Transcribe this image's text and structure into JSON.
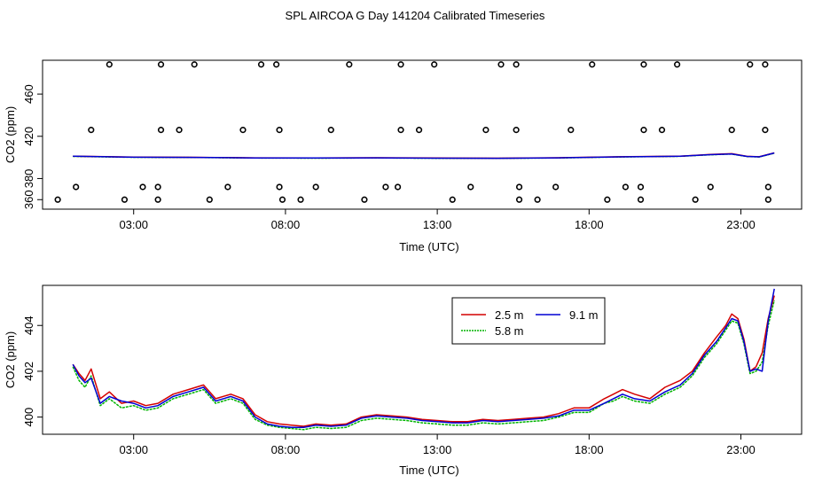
{
  "title": "SPL AIRCOA G  Day 141204  Calibrated Timeseries",
  "chart_data": [
    {
      "type": "line",
      "panel": "top",
      "title": "",
      "xlabel": "Time (UTC)",
      "ylabel": "CO2 (ppm)",
      "xlim": [
        0,
        25
      ],
      "ylim": [
        351,
        492
      ],
      "xtick_values": [
        3,
        8,
        13,
        18,
        23
      ],
      "xtick_labels": [
        "03:00",
        "08:00",
        "13:00",
        "18:00",
        "23:00"
      ],
      "ytick_values": [
        360,
        380,
        420,
        460
      ],
      "ytick_labels": [
        "360",
        "380",
        "420",
        "460"
      ],
      "series": [
        {
          "name": "2.5 m",
          "color": "#d40000",
          "x": [
            1,
            3,
            5,
            7,
            9,
            11,
            13,
            15,
            17,
            19,
            21,
            22,
            22.7,
            23.2,
            23.6,
            24.1
          ],
          "values": [
            401.2,
            400.3,
            400.1,
            399.6,
            399.5,
            399.7,
            399.4,
            399.3,
            399.7,
            400.6,
            401.2,
            402.8,
            403.5,
            401.0,
            400.6,
            404.3
          ]
        },
        {
          "name": "5.8 m",
          "color": "#00b400",
          "x": [
            1,
            3,
            5,
            7,
            9,
            11,
            13,
            15,
            17,
            19,
            21,
            22,
            22.7,
            23.2,
            23.6,
            24.1
          ],
          "values": [
            400.9,
            400.1,
            399.9,
            399.4,
            399.3,
            399.5,
            399.2,
            399.1,
            399.5,
            400.4,
            401.0,
            402.5,
            403.2,
            400.8,
            400.4,
            404.0
          ]
        },
        {
          "name": "9.1 m",
          "color": "#0000d4",
          "x": [
            1,
            3,
            5,
            7,
            9,
            11,
            13,
            15,
            17,
            19,
            21,
            22,
            22.7,
            23.2,
            23.6,
            24.1
          ],
          "values": [
            401.1,
            400.2,
            400.0,
            399.5,
            399.4,
            399.6,
            399.3,
            399.2,
            399.6,
            400.5,
            401.1,
            402.6,
            403.3,
            400.9,
            400.5,
            404.2
          ]
        }
      ],
      "markers": {
        "style": "open circles",
        "points": [
          {
            "x": 2.2,
            "y": 488
          },
          {
            "x": 3.9,
            "y": 488
          },
          {
            "x": 5.0,
            "y": 488
          },
          {
            "x": 7.2,
            "y": 488
          },
          {
            "x": 7.7,
            "y": 488
          },
          {
            "x": 10.1,
            "y": 488
          },
          {
            "x": 11.8,
            "y": 488
          },
          {
            "x": 12.9,
            "y": 488
          },
          {
            "x": 15.1,
            "y": 488
          },
          {
            "x": 15.6,
            "y": 488
          },
          {
            "x": 18.1,
            "y": 488
          },
          {
            "x": 19.8,
            "y": 488
          },
          {
            "x": 20.9,
            "y": 488
          },
          {
            "x": 23.3,
            "y": 488
          },
          {
            "x": 23.8,
            "y": 488
          },
          {
            "x": 1.6,
            "y": 426
          },
          {
            "x": 3.9,
            "y": 426
          },
          {
            "x": 4.5,
            "y": 426
          },
          {
            "x": 6.6,
            "y": 426
          },
          {
            "x": 7.8,
            "y": 426
          },
          {
            "x": 9.5,
            "y": 426
          },
          {
            "x": 11.8,
            "y": 426
          },
          {
            "x": 12.4,
            "y": 426
          },
          {
            "x": 14.6,
            "y": 426
          },
          {
            "x": 15.6,
            "y": 426
          },
          {
            "x": 17.4,
            "y": 426
          },
          {
            "x": 19.8,
            "y": 426
          },
          {
            "x": 20.4,
            "y": 426
          },
          {
            "x": 22.7,
            "y": 426
          },
          {
            "x": 23.8,
            "y": 426
          },
          {
            "x": 1.1,
            "y": 372
          },
          {
            "x": 3.3,
            "y": 372
          },
          {
            "x": 3.8,
            "y": 372
          },
          {
            "x": 6.1,
            "y": 372
          },
          {
            "x": 7.8,
            "y": 372
          },
          {
            "x": 9.0,
            "y": 372
          },
          {
            "x": 11.3,
            "y": 372
          },
          {
            "x": 11.7,
            "y": 372
          },
          {
            "x": 14.1,
            "y": 372
          },
          {
            "x": 15.7,
            "y": 372
          },
          {
            "x": 16.9,
            "y": 372
          },
          {
            "x": 19.2,
            "y": 372
          },
          {
            "x": 19.7,
            "y": 372
          },
          {
            "x": 22.0,
            "y": 372
          },
          {
            "x": 23.9,
            "y": 372
          },
          {
            "x": 0.5,
            "y": 360
          },
          {
            "x": 2.7,
            "y": 360
          },
          {
            "x": 3.8,
            "y": 360
          },
          {
            "x": 5.5,
            "y": 360
          },
          {
            "x": 7.9,
            "y": 360
          },
          {
            "x": 8.5,
            "y": 360
          },
          {
            "x": 10.6,
            "y": 360
          },
          {
            "x": 13.5,
            "y": 360
          },
          {
            "x": 15.7,
            "y": 360
          },
          {
            "x": 16.3,
            "y": 360
          },
          {
            "x": 18.6,
            "y": 360
          },
          {
            "x": 19.7,
            "y": 360
          },
          {
            "x": 21.5,
            "y": 360
          },
          {
            "x": 23.9,
            "y": 360
          }
        ]
      }
    },
    {
      "type": "line",
      "panel": "bottom",
      "title": "",
      "xlabel": "Time (UTC)",
      "ylabel": "CO2 (ppm)",
      "xlim": [
        0,
        25
      ],
      "ylim": [
        399.25,
        405.75
      ],
      "xtick_values": [
        3,
        8,
        13,
        18,
        23
      ],
      "xtick_labels": [
        "03:00",
        "08:00",
        "13:00",
        "18:00",
        "23:00"
      ],
      "ytick_values": [
        400,
        402,
        404
      ],
      "ytick_labels": [
        "400",
        "402",
        "404"
      ],
      "legend": {
        "position": "top-right",
        "labels": [
          "2.5 m",
          "9.1 m",
          "5.8 m"
        ]
      },
      "series": [
        {
          "name": "2.5 m",
          "color": "#d40000",
          "x": [
            1.0,
            1.2,
            1.4,
            1.6,
            1.9,
            2.2,
            2.6,
            3.0,
            3.4,
            3.8,
            4.3,
            4.8,
            5.3,
            5.7,
            6.2,
            6.6,
            7.0,
            7.4,
            7.8,
            8.2,
            8.6,
            9.0,
            9.5,
            10.0,
            10.5,
            11.0,
            11.5,
            12.0,
            12.5,
            13.0,
            13.5,
            14.0,
            14.5,
            15.0,
            15.5,
            16.0,
            16.5,
            17.0,
            17.5,
            18.0,
            18.5,
            18.8,
            19.1,
            19.5,
            20.0,
            20.5,
            21.0,
            21.4,
            21.8,
            22.2,
            22.5,
            22.7,
            22.9,
            23.1,
            23.3,
            23.5,
            23.7,
            23.9,
            24.1
          ],
          "values": [
            402.3,
            401.9,
            401.6,
            402.1,
            400.8,
            401.1,
            400.6,
            400.7,
            400.5,
            400.6,
            401.0,
            401.2,
            401.4,
            400.8,
            401.0,
            400.8,
            400.1,
            399.8,
            399.7,
            399.65,
            399.6,
            399.7,
            399.65,
            399.7,
            400.0,
            400.1,
            400.05,
            400.0,
            399.9,
            399.85,
            399.8,
            399.8,
            399.9,
            399.85,
            399.9,
            399.95,
            400.0,
            400.15,
            400.4,
            400.4,
            400.8,
            401.0,
            401.2,
            401.0,
            400.8,
            401.3,
            401.6,
            402.0,
            402.8,
            403.5,
            404.0,
            404.5,
            404.3,
            403.4,
            402.0,
            402.2,
            402.8,
            404.3,
            405.3
          ]
        },
        {
          "name": "5.8 m",
          "color": "#00b400",
          "x": [
            1.0,
            1.2,
            1.4,
            1.6,
            1.9,
            2.2,
            2.6,
            3.0,
            3.4,
            3.8,
            4.3,
            4.8,
            5.3,
            5.7,
            6.2,
            6.6,
            7.0,
            7.4,
            7.8,
            8.2,
            8.6,
            9.0,
            9.5,
            10.0,
            10.5,
            11.0,
            11.5,
            12.0,
            12.5,
            13.0,
            13.5,
            14.0,
            14.5,
            15.0,
            15.5,
            16.0,
            16.5,
            17.0,
            17.5,
            18.0,
            18.5,
            18.8,
            19.1,
            19.5,
            20.0,
            20.5,
            21.0,
            21.4,
            21.8,
            22.2,
            22.5,
            22.7,
            22.9,
            23.1,
            23.3,
            23.5,
            23.7,
            23.9,
            24.1
          ],
          "values": [
            402.2,
            401.6,
            401.3,
            401.8,
            400.5,
            400.8,
            400.4,
            400.5,
            400.3,
            400.4,
            400.8,
            401.0,
            401.2,
            400.6,
            400.8,
            400.6,
            399.9,
            399.65,
            399.55,
            399.5,
            399.45,
            399.55,
            399.5,
            399.55,
            399.85,
            399.95,
            399.9,
            399.85,
            399.75,
            399.7,
            399.65,
            399.65,
            399.75,
            399.7,
            399.75,
            399.8,
            399.85,
            400.0,
            400.2,
            400.2,
            400.6,
            400.7,
            400.9,
            400.7,
            400.6,
            401.0,
            401.3,
            401.8,
            402.6,
            403.2,
            403.8,
            404.2,
            404.1,
            403.2,
            401.9,
            402.0,
            402.4,
            404.0,
            405.1
          ]
        },
        {
          "name": "9.1 m",
          "color": "#0000d4",
          "x": [
            1.0,
            1.2,
            1.4,
            1.6,
            1.9,
            2.2,
            2.6,
            3.0,
            3.4,
            3.8,
            4.3,
            4.8,
            5.3,
            5.7,
            6.2,
            6.6,
            7.0,
            7.4,
            7.8,
            8.2,
            8.6,
            9.0,
            9.5,
            10.0,
            10.5,
            11.0,
            11.5,
            12.0,
            12.5,
            13.0,
            13.5,
            14.0,
            14.5,
            15.0,
            15.5,
            16.0,
            16.5,
            17.0,
            17.5,
            18.0,
            18.5,
            18.8,
            19.1,
            19.5,
            20.0,
            20.5,
            21.0,
            21.4,
            21.8,
            22.2,
            22.5,
            22.7,
            22.9,
            23.1,
            23.3,
            23.5,
            23.7,
            23.9,
            24.1
          ],
          "values": [
            402.3,
            401.8,
            401.5,
            401.7,
            400.6,
            400.9,
            400.7,
            400.6,
            400.4,
            400.5,
            400.9,
            401.1,
            401.3,
            400.7,
            400.9,
            400.7,
            400.0,
            399.7,
            399.6,
            399.55,
            399.55,
            399.65,
            399.6,
            399.65,
            399.95,
            400.05,
            400.0,
            399.95,
            399.85,
            399.8,
            399.75,
            399.75,
            399.85,
            399.8,
            399.85,
            399.9,
            399.95,
            400.05,
            400.3,
            400.3,
            400.6,
            400.8,
            401.0,
            400.8,
            400.7,
            401.1,
            401.4,
            401.9,
            402.7,
            403.3,
            403.9,
            404.3,
            404.2,
            403.3,
            402.0,
            402.1,
            402.0,
            404.2,
            405.6
          ]
        }
      ]
    }
  ]
}
